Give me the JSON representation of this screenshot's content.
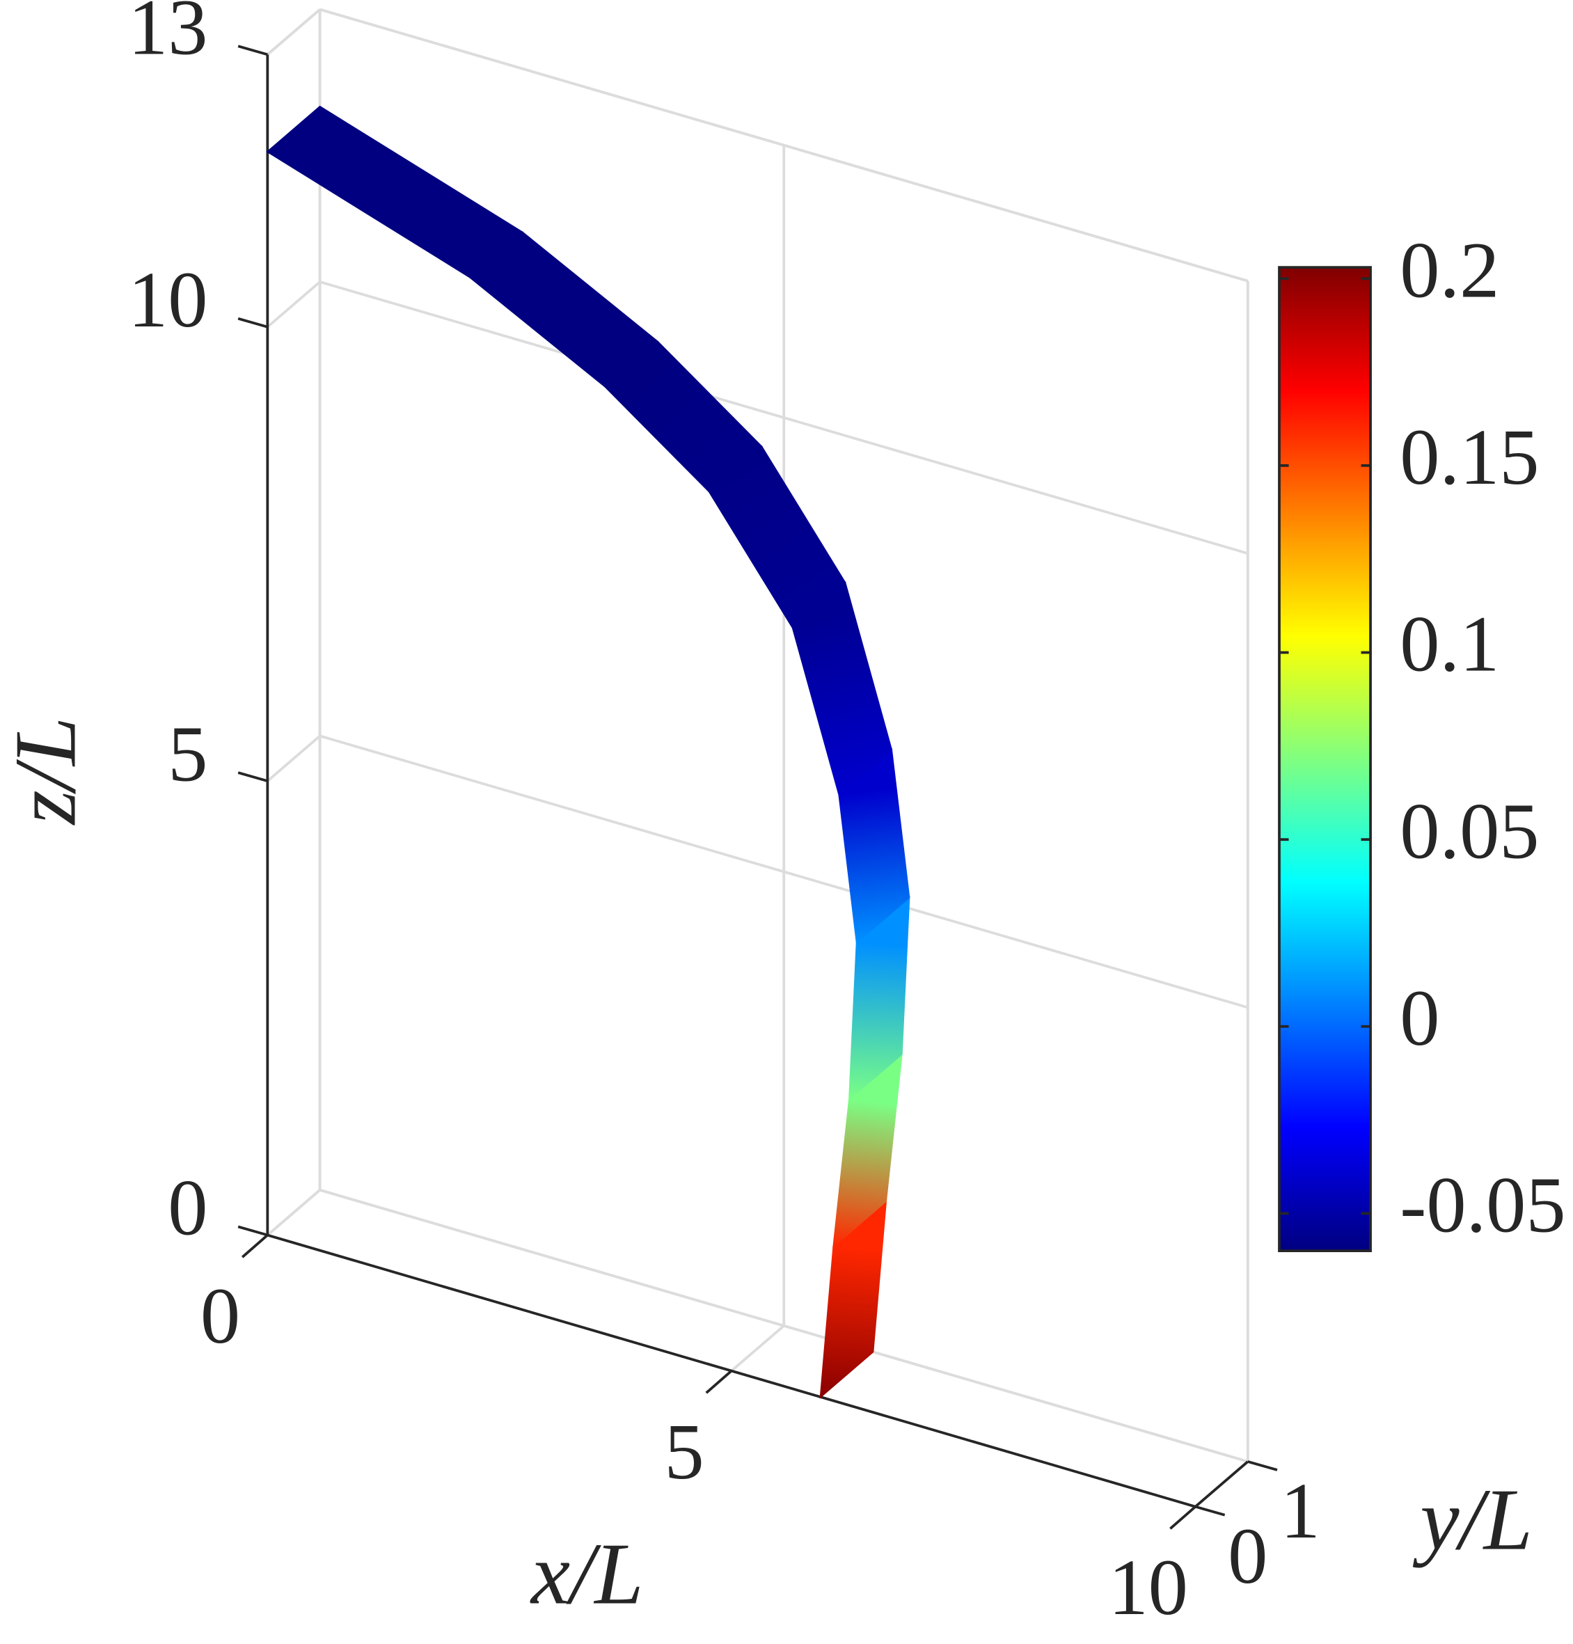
{
  "chart_data": {
    "type": "ribbon3d",
    "xlabel": "x/L",
    "ylabel": "y/L",
    "zlabel": "z/L",
    "x": [
      5.96,
      6.1,
      6.27,
      6.35,
      6.16,
      5.66,
      4.76,
      3.64,
      2.18,
      0
    ],
    "z": [
      0,
      1.7,
      3.37,
      5.12,
      6.69,
      8.38,
      9.61,
      10.43,
      11.2,
      11.93
    ],
    "values": [
      0.2,
      0.16,
      0.07,
      0.01,
      -0.04,
      -0.055,
      -0.058,
      -0.06,
      -0.06,
      -0.06
    ],
    "xlim": [
      0,
      10
    ],
    "xticks": [
      0,
      5,
      10
    ],
    "ylim": [
      0,
      1
    ],
    "yticks": [
      0,
      1
    ],
    "zlim": [
      0,
      13
    ],
    "zticks": [
      0,
      5,
      10,
      13
    ],
    "clim": [
      -0.06,
      0.203
    ],
    "cticks": [
      -0.05,
      0,
      0.05,
      0.1,
      0.15,
      0.2
    ],
    "colormap": "jet",
    "grid": true
  }
}
